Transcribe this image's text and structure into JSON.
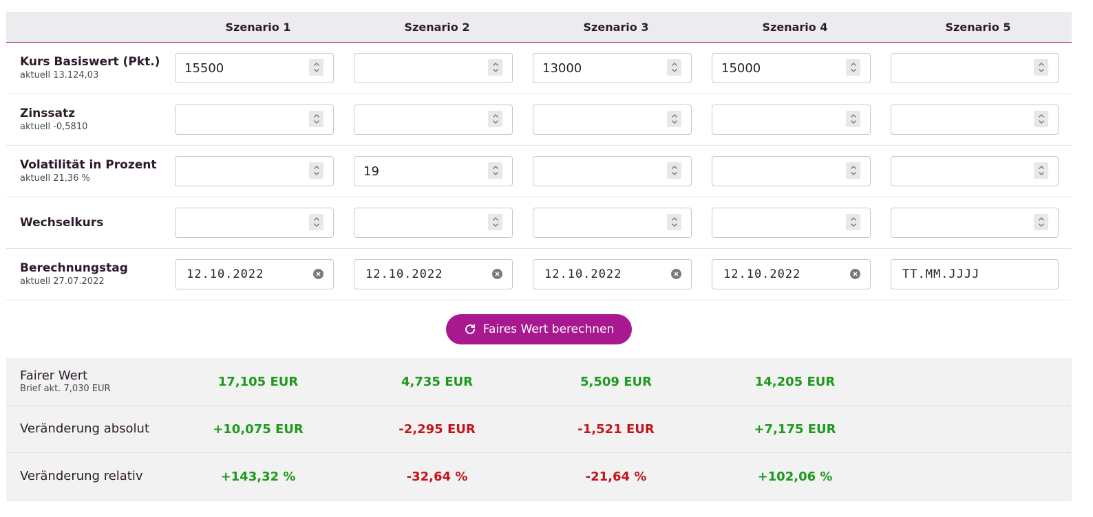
{
  "header": {
    "scenarios": [
      "Szenario 1",
      "Szenario 2",
      "Szenario 3",
      "Szenario 4",
      "Szenario 5"
    ]
  },
  "inputs": [
    {
      "label": "Kurs Basiswert (Pkt.)",
      "sub": "aktuell 13.124,03",
      "type": "number",
      "values": [
        "15500",
        "",
        "13000",
        "15000",
        ""
      ]
    },
    {
      "label": "Zinssatz",
      "sub": "aktuell -0,5810",
      "type": "number",
      "values": [
        "",
        "",
        "",
        "",
        ""
      ]
    },
    {
      "label": "Volatilität in Prozent",
      "sub": "aktuell 21,36 %",
      "type": "number",
      "values": [
        "",
        "19",
        "",
        "",
        ""
      ]
    },
    {
      "label": "Wechselkurs",
      "sub": "",
      "type": "number",
      "values": [
        "",
        "",
        "",
        "",
        ""
      ]
    },
    {
      "label": "Berechnungstag",
      "sub": "aktuell 27.07.2022",
      "type": "date",
      "values": [
        "12.10.2022",
        "12.10.2022",
        "12.10.2022",
        "12.10.2022",
        ""
      ],
      "placeholder": "TT.MM.JJJJ"
    }
  ],
  "button": {
    "label": "Faires Wert berechnen"
  },
  "results": [
    {
      "label": "Fairer Wert",
      "sub": "Brief akt. 7,030 EUR",
      "values": [
        "17,105 EUR",
        "4,735 EUR",
        "5,509 EUR",
        "14,205 EUR",
        ""
      ],
      "signs": [
        "pos",
        "pos",
        "pos",
        "pos",
        ""
      ]
    },
    {
      "label": "Veränderung absolut",
      "sub": "",
      "values": [
        "+10,075 EUR",
        "-2,295 EUR",
        "-1,521 EUR",
        "+7,175 EUR",
        ""
      ],
      "signs": [
        "pos",
        "neg",
        "neg",
        "pos",
        ""
      ]
    },
    {
      "label": "Veränderung relativ",
      "sub": "",
      "values": [
        "+143,32 %",
        "-32,64 %",
        "-21,64 %",
        "+102,06 %",
        ""
      ],
      "signs": [
        "pos",
        "neg",
        "neg",
        "pos",
        ""
      ]
    }
  ],
  "colors": {
    "accent": "#a8198f",
    "positive": "#1d9a1d",
    "negative": "#c0161b",
    "header_bg": "#ececee",
    "results_bg": "#f2f2f2"
  },
  "icons": {
    "spinner": "up-down-chevron-icon",
    "clear": "clear-circle-x-icon",
    "button": "refresh-icon"
  }
}
